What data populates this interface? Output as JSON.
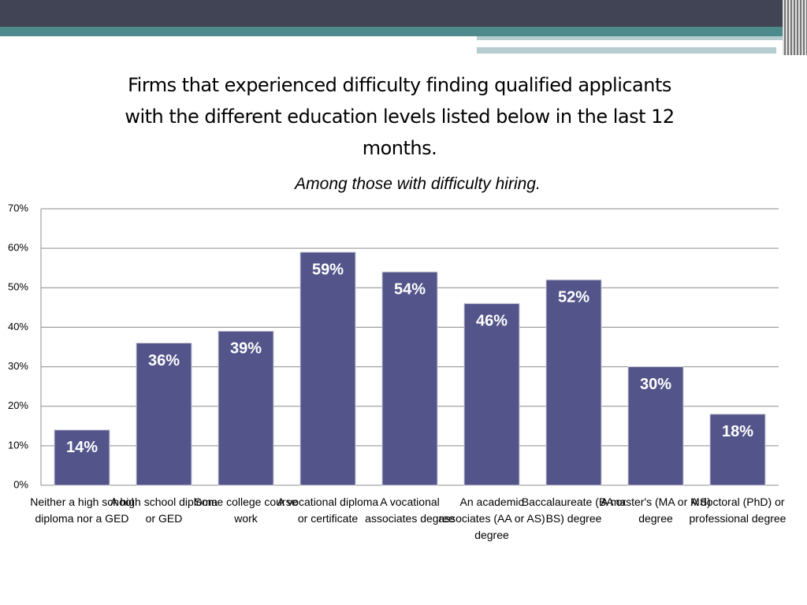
{
  "chart_data": {
    "type": "bar",
    "title": "Firms that experienced difficulty finding qualified applicants with the different education levels listed below in the last 12 months.",
    "subtitle": "Among those with difficulty hiring.",
    "categories": [
      "Neither a high school diploma nor a GED",
      "A high school diploma or GED",
      "Some college course work",
      "A vocational diploma or certificate",
      "A vocational associates degree",
      "An academic associates (AA or AS) degree",
      "Baccalaureate (BA or BS) degree",
      "A master's (MA or MS) degree",
      "A doctoral (PhD) or professional degree"
    ],
    "values": [
      14,
      36,
      39,
      59,
      54,
      46,
      52,
      30,
      18
    ],
    "value_labels": [
      "14%",
      "36%",
      "39%",
      "59%",
      "54%",
      "46%",
      "52%",
      "30%",
      "18%"
    ],
    "color": "#53548a",
    "ylim": [
      0,
      70
    ],
    "yticks": [
      {
        "value": 0,
        "label": "0%"
      },
      {
        "value": 10,
        "label": "10%"
      },
      {
        "value": 20,
        "label": "20%"
      },
      {
        "value": 30,
        "label": "30%"
      },
      {
        "value": 40,
        "label": "40%"
      },
      {
        "value": 50,
        "label": "50%"
      },
      {
        "value": 60,
        "label": "60%"
      },
      {
        "value": 70,
        "label": "70%"
      }
    ],
    "grid": true
  }
}
